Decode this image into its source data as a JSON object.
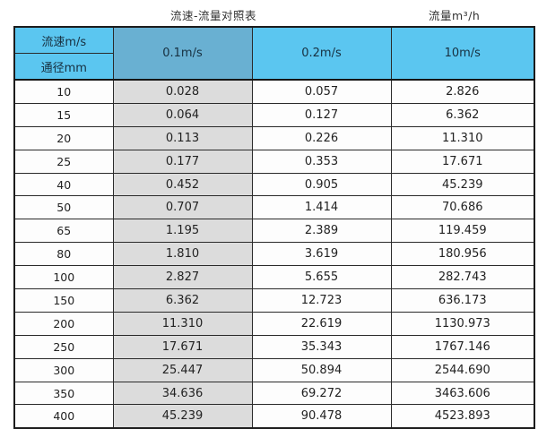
{
  "page_title": {
    "main": "流速-流量对照表",
    "unit": "流量m³/h"
  },
  "table": {
    "corner": {
      "top": "流速m/s",
      "bottom": "通径mm"
    },
    "columns": [
      "0.1m/s",
      "0.2m/s",
      "10m/s"
    ],
    "rows": [
      [
        "10",
        "0.028",
        "0.057",
        "2.826"
      ],
      [
        "15",
        "0.064",
        "0.127",
        "6.362"
      ],
      [
        "20",
        "0.113",
        "0.226",
        "11.310"
      ],
      [
        "25",
        "0.177",
        "0.353",
        "17.671"
      ],
      [
        "40",
        "0.452",
        "0.905",
        "45.239"
      ],
      [
        "50",
        "0.707",
        "1.414",
        "70.686"
      ],
      [
        "65",
        "1.195",
        "2.389",
        "119.459"
      ],
      [
        "80",
        "1.810",
        "3.619",
        "180.956"
      ],
      [
        "100",
        "2.827",
        "5.655",
        "282.743"
      ],
      [
        "150",
        "6.362",
        "12.723",
        "636.173"
      ],
      [
        "200",
        "11.310",
        "22.619",
        "1130.973"
      ],
      [
        "250",
        "17.671",
        "35.343",
        "1767.146"
      ],
      [
        "300",
        "25.447",
        "50.894",
        "2544.690"
      ],
      [
        "350",
        "34.636",
        "69.272",
        "3463.606"
      ],
      [
        "400",
        "45.239",
        "90.478",
        "4523.893"
      ]
    ]
  },
  "colors": {
    "header_light_blue": "#5bc6f0",
    "header_dark_blue": "#69b0d2",
    "shaded_column_gray": "#dcdcdc",
    "border_dark": "#1c1c1c",
    "cell_white": "#fdfdfd"
  },
  "chart_data": {
    "type": "table",
    "title": "流速-流量对照表",
    "value_unit_label": "流量m³/h",
    "row_header_label": "通径mm",
    "col_header_label": "流速m/s",
    "columns": [
      "0.1m/s",
      "0.2m/s",
      "10m/s"
    ],
    "diameters_mm": [
      10,
      15,
      20,
      25,
      40,
      50,
      65,
      80,
      100,
      150,
      200,
      250,
      300,
      350,
      400
    ],
    "series": [
      {
        "name": "0.1m/s",
        "values": [
          0.028,
          0.064,
          0.113,
          0.177,
          0.452,
          0.707,
          1.195,
          1.81,
          2.827,
          6.362,
          11.31,
          17.671,
          25.447,
          34.636,
          45.239
        ]
      },
      {
        "name": "0.2m/s",
        "values": [
          0.057,
          0.127,
          0.226,
          0.353,
          0.905,
          1.414,
          2.389,
          3.619,
          5.655,
          12.723,
          22.619,
          35.343,
          50.894,
          69.272,
          90.478
        ]
      },
      {
        "name": "10m/s",
        "values": [
          2.826,
          6.362,
          11.31,
          17.671,
          45.239,
          70.686,
          119.459,
          180.956,
          282.743,
          636.173,
          1130.973,
          1767.146,
          2544.69,
          3463.606,
          4523.893
        ]
      }
    ]
  }
}
